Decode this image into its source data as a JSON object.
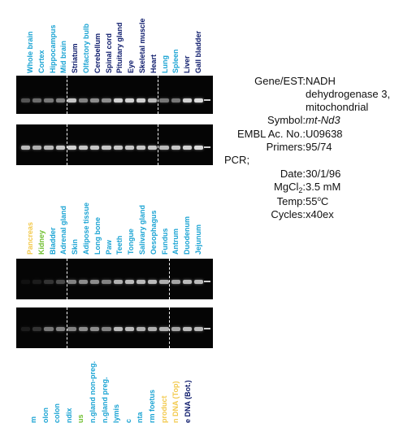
{
  "groups": [
    {
      "labels": [
        {
          "text": "Whole brain",
          "color": "#1aa3d3"
        },
        {
          "text": "Cortex",
          "color": "#1aa3d3"
        },
        {
          "text": "Hippocampus",
          "color": "#1aa3d3"
        },
        {
          "text": "Mid brain",
          "color": "#1aa3d3"
        },
        {
          "text": "Striatum",
          "color": "#0c1a6b"
        },
        {
          "text": "Olfactory bulb",
          "color": "#1aa3d3"
        },
        {
          "text": "Cerebellum",
          "color": "#0c1a6b"
        },
        {
          "text": "Spinal cord",
          "color": "#0c1a6b"
        },
        {
          "text": "Pituitary gland",
          "color": "#0c1a6b"
        },
        {
          "text": "Eye",
          "color": "#0c1a6b"
        },
        {
          "text": "Skeletal muscle",
          "color": "#0c1a6b"
        },
        {
          "text": "Heart",
          "color": "#0c1a6b"
        },
        {
          "text": "Lung",
          "color": "#1aa3d3"
        },
        {
          "text": "Spleen",
          "color": "#1aa3d3"
        },
        {
          "text": "Liver",
          "color": "#0c1a6b"
        },
        {
          "text": "Gall bladder",
          "color": "#0c1a6b"
        }
      ],
      "gel1_intensity": [
        0.35,
        0.45,
        0.5,
        0.55,
        0.85,
        0.55,
        0.6,
        0.6,
        0.9,
        0.9,
        0.9,
        0.8,
        0.5,
        0.5,
        0.9,
        0.95
      ],
      "gel2_intensity": [
        0.8,
        0.75,
        0.8,
        0.85,
        0.9,
        0.85,
        0.85,
        0.85,
        0.85,
        0.85,
        0.85,
        0.85,
        0.8,
        0.85,
        0.9,
        0.95
      ]
    },
    {
      "labels": [
        {
          "text": "Pancreas",
          "color": "#f2c94c"
        },
        {
          "text": "Kidney",
          "color": "#6fbf2f"
        },
        {
          "text": "Bladder",
          "color": "#1aa3d3"
        },
        {
          "text": "Adrenal gland",
          "color": "#1aa3d3"
        },
        {
          "text": "Skin",
          "color": "#1aa3d3"
        },
        {
          "text": "Adipose tissue",
          "color": "#1aa3d3"
        },
        {
          "text": "Long bone",
          "color": "#1aa3d3"
        },
        {
          "text": "Paw",
          "color": "#1aa3d3"
        },
        {
          "text": "Teeth",
          "color": "#1aa3d3"
        },
        {
          "text": "Tongue",
          "color": "#1aa3d3"
        },
        {
          "text": "Salivary gland",
          "color": "#1aa3d3"
        },
        {
          "text": "Oesophagus",
          "color": "#1aa3d3"
        },
        {
          "text": "Fundus",
          "color": "#1aa3d3"
        },
        {
          "text": "Antrum",
          "color": "#1aa3d3"
        },
        {
          "text": "Duodenum",
          "color": "#1aa3d3"
        },
        {
          "text": "Jejunum",
          "color": "#1aa3d3"
        }
      ],
      "gel1_intensity": [
        0.05,
        0.1,
        0.2,
        0.3,
        0.55,
        0.6,
        0.6,
        0.55,
        0.75,
        0.8,
        0.8,
        0.8,
        0.75,
        0.7,
        0.8,
        0.8
      ],
      "gel2_intensity": [
        0.1,
        0.2,
        0.5,
        0.55,
        0.55,
        0.6,
        0.6,
        0.55,
        0.8,
        0.8,
        0.75,
        0.75,
        0.75,
        0.7,
        0.8,
        0.8
      ]
    },
    {
      "labels": [
        {
          "text": "m",
          "color": "#1aa3d3"
        },
        {
          "text": "olon",
          "color": "#1aa3d3"
        },
        {
          "text": "colon",
          "color": "#1aa3d3"
        },
        {
          "text": "ndix",
          "color": "#1aa3d3"
        },
        {
          "text": "us",
          "color": "#6fbf2f"
        },
        {
          "text": "n.gland non-preg.",
          "color": "#1aa3d3"
        },
        {
          "text": "n.gland preg.",
          "color": "#1aa3d3"
        },
        {
          "text": "lymis",
          "color": "#1aa3d3"
        },
        {
          "text": "c",
          "color": "#1aa3d3"
        },
        {
          "text": "nta",
          "color": "#1aa3d3"
        },
        {
          "text": "rm foetus",
          "color": "#1aa3d3"
        },
        {
          "text": "product",
          "color": "#f2c94c"
        },
        {
          "text": "n DNA (Top)",
          "color": "#f2c94c"
        },
        {
          "text": "e DNA (Bot.)",
          "color": "#0c1a6b"
        }
      ]
    }
  ],
  "info": {
    "gene_label": "Gene/EST:",
    "gene_value_lines": [
      "NADH",
      "dehydrogenase 3,",
      "mitochondrial"
    ],
    "symbol_label": "Symbol:",
    "symbol_value": "mt-Nd3",
    "embl_label": "EMBL Ac. No.:",
    "embl_value": "U09638",
    "primers_label": "Primers:",
    "primers_value": "95/74",
    "pcr_label": "PCR;",
    "date_label": "Date:",
    "date_value": "30/1/96",
    "mgcl_label_main": "MgCl",
    "mgcl_label_sub": "2",
    "mgcl_label_end": ":",
    "mgcl_value": "3.5 mM",
    "temp_label": "Temp:",
    "temp_value_main": "55",
    "temp_value_sup": "o",
    "temp_value_end": "C",
    "cycles_label": "Cycles:",
    "cycles_value": "x40ex"
  }
}
